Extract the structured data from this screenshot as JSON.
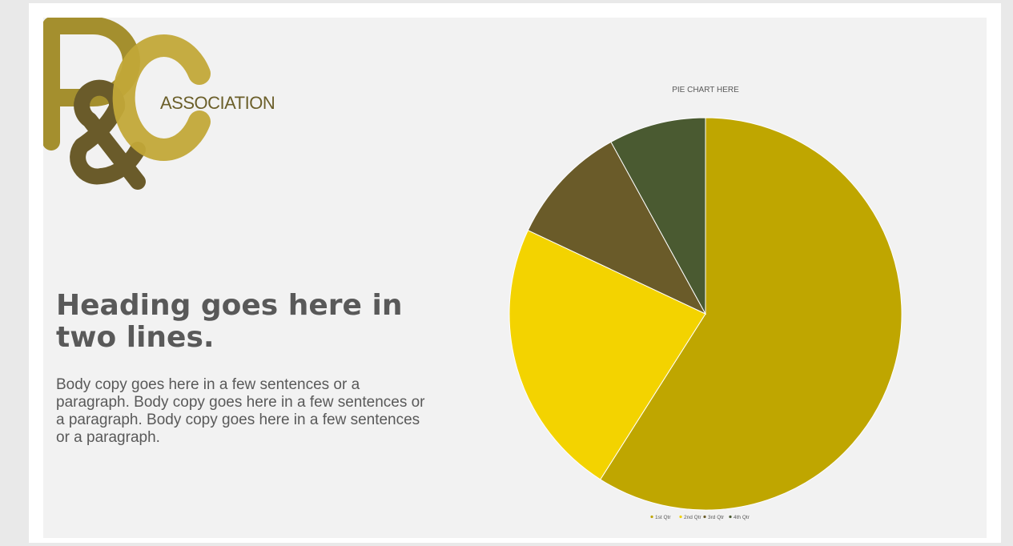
{
  "logo": {
    "word": "ASSOCIATION",
    "letters": [
      "P",
      "&",
      "C"
    ],
    "colors": {
      "p": "#a48f2e",
      "amp": "#6a5b2a",
      "c": "#c2a838"
    }
  },
  "content": {
    "heading": "Heading goes here in two lines.",
    "body": "Body copy goes here in a few sentences or a paragraph. Body copy goes here in a few sentences or a paragraph. Body copy goes here in a few sentences or a paragraph."
  },
  "chart_data": {
    "type": "pie",
    "title": "PIE CHART HERE",
    "categories": [
      "1st Qtr",
      "2nd Qtr",
      "3rd Qtr",
      "4th Qtr"
    ],
    "values": [
      59,
      23,
      10,
      8
    ],
    "colors": [
      "#bfa600",
      "#f3d300",
      "#6a5b29",
      "#4a5a31"
    ],
    "legend_position": "bottom",
    "start": "top",
    "direction": "clockwise"
  }
}
